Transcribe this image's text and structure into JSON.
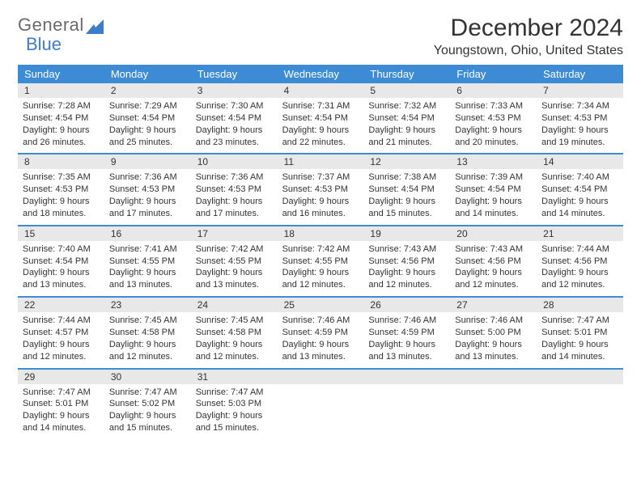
{
  "logo": {
    "general": "General",
    "blue": "Blue"
  },
  "title": "December 2024",
  "location": "Youngstown, Ohio, United States",
  "colors": {
    "header_bg": "#3d8bd4",
    "header_text": "#ffffff",
    "daynum_bg": "#e8e8e8",
    "row_border": "#3d8bd4",
    "logo_gray": "#6a6a6a",
    "logo_blue": "#3d7cc9",
    "text": "#333333",
    "background": "#ffffff"
  },
  "font": {
    "family": "Arial",
    "title_size_pt": 22,
    "location_size_pt": 12,
    "header_size_pt": 10,
    "body_size_pt": 8
  },
  "day_names": [
    "Sunday",
    "Monday",
    "Tuesday",
    "Wednesday",
    "Thursday",
    "Friday",
    "Saturday"
  ],
  "weeks": [
    {
      "nums": [
        "1",
        "2",
        "3",
        "4",
        "5",
        "6",
        "7"
      ],
      "cells": [
        {
          "sunrise": "Sunrise: 7:28 AM",
          "sunset": "Sunset: 4:54 PM",
          "d1": "Daylight: 9 hours",
          "d2": "and 26 minutes."
        },
        {
          "sunrise": "Sunrise: 7:29 AM",
          "sunset": "Sunset: 4:54 PM",
          "d1": "Daylight: 9 hours",
          "d2": "and 25 minutes."
        },
        {
          "sunrise": "Sunrise: 7:30 AM",
          "sunset": "Sunset: 4:54 PM",
          "d1": "Daylight: 9 hours",
          "d2": "and 23 minutes."
        },
        {
          "sunrise": "Sunrise: 7:31 AM",
          "sunset": "Sunset: 4:54 PM",
          "d1": "Daylight: 9 hours",
          "d2": "and 22 minutes."
        },
        {
          "sunrise": "Sunrise: 7:32 AM",
          "sunset": "Sunset: 4:54 PM",
          "d1": "Daylight: 9 hours",
          "d2": "and 21 minutes."
        },
        {
          "sunrise": "Sunrise: 7:33 AM",
          "sunset": "Sunset: 4:53 PM",
          "d1": "Daylight: 9 hours",
          "d2": "and 20 minutes."
        },
        {
          "sunrise": "Sunrise: 7:34 AM",
          "sunset": "Sunset: 4:53 PM",
          "d1": "Daylight: 9 hours",
          "d2": "and 19 minutes."
        }
      ]
    },
    {
      "nums": [
        "8",
        "9",
        "10",
        "11",
        "12",
        "13",
        "14"
      ],
      "cells": [
        {
          "sunrise": "Sunrise: 7:35 AM",
          "sunset": "Sunset: 4:53 PM",
          "d1": "Daylight: 9 hours",
          "d2": "and 18 minutes."
        },
        {
          "sunrise": "Sunrise: 7:36 AM",
          "sunset": "Sunset: 4:53 PM",
          "d1": "Daylight: 9 hours",
          "d2": "and 17 minutes."
        },
        {
          "sunrise": "Sunrise: 7:36 AM",
          "sunset": "Sunset: 4:53 PM",
          "d1": "Daylight: 9 hours",
          "d2": "and 17 minutes."
        },
        {
          "sunrise": "Sunrise: 7:37 AM",
          "sunset": "Sunset: 4:53 PM",
          "d1": "Daylight: 9 hours",
          "d2": "and 16 minutes."
        },
        {
          "sunrise": "Sunrise: 7:38 AM",
          "sunset": "Sunset: 4:54 PM",
          "d1": "Daylight: 9 hours",
          "d2": "and 15 minutes."
        },
        {
          "sunrise": "Sunrise: 7:39 AM",
          "sunset": "Sunset: 4:54 PM",
          "d1": "Daylight: 9 hours",
          "d2": "and 14 minutes."
        },
        {
          "sunrise": "Sunrise: 7:40 AM",
          "sunset": "Sunset: 4:54 PM",
          "d1": "Daylight: 9 hours",
          "d2": "and 14 minutes."
        }
      ]
    },
    {
      "nums": [
        "15",
        "16",
        "17",
        "18",
        "19",
        "20",
        "21"
      ],
      "cells": [
        {
          "sunrise": "Sunrise: 7:40 AM",
          "sunset": "Sunset: 4:54 PM",
          "d1": "Daylight: 9 hours",
          "d2": "and 13 minutes."
        },
        {
          "sunrise": "Sunrise: 7:41 AM",
          "sunset": "Sunset: 4:55 PM",
          "d1": "Daylight: 9 hours",
          "d2": "and 13 minutes."
        },
        {
          "sunrise": "Sunrise: 7:42 AM",
          "sunset": "Sunset: 4:55 PM",
          "d1": "Daylight: 9 hours",
          "d2": "and 13 minutes."
        },
        {
          "sunrise": "Sunrise: 7:42 AM",
          "sunset": "Sunset: 4:55 PM",
          "d1": "Daylight: 9 hours",
          "d2": "and 12 minutes."
        },
        {
          "sunrise": "Sunrise: 7:43 AM",
          "sunset": "Sunset: 4:56 PM",
          "d1": "Daylight: 9 hours",
          "d2": "and 12 minutes."
        },
        {
          "sunrise": "Sunrise: 7:43 AM",
          "sunset": "Sunset: 4:56 PM",
          "d1": "Daylight: 9 hours",
          "d2": "and 12 minutes."
        },
        {
          "sunrise": "Sunrise: 7:44 AM",
          "sunset": "Sunset: 4:56 PM",
          "d1": "Daylight: 9 hours",
          "d2": "and 12 minutes."
        }
      ]
    },
    {
      "nums": [
        "22",
        "23",
        "24",
        "25",
        "26",
        "27",
        "28"
      ],
      "cells": [
        {
          "sunrise": "Sunrise: 7:44 AM",
          "sunset": "Sunset: 4:57 PM",
          "d1": "Daylight: 9 hours",
          "d2": "and 12 minutes."
        },
        {
          "sunrise": "Sunrise: 7:45 AM",
          "sunset": "Sunset: 4:58 PM",
          "d1": "Daylight: 9 hours",
          "d2": "and 12 minutes."
        },
        {
          "sunrise": "Sunrise: 7:45 AM",
          "sunset": "Sunset: 4:58 PM",
          "d1": "Daylight: 9 hours",
          "d2": "and 12 minutes."
        },
        {
          "sunrise": "Sunrise: 7:46 AM",
          "sunset": "Sunset: 4:59 PM",
          "d1": "Daylight: 9 hours",
          "d2": "and 13 minutes."
        },
        {
          "sunrise": "Sunrise: 7:46 AM",
          "sunset": "Sunset: 4:59 PM",
          "d1": "Daylight: 9 hours",
          "d2": "and 13 minutes."
        },
        {
          "sunrise": "Sunrise: 7:46 AM",
          "sunset": "Sunset: 5:00 PM",
          "d1": "Daylight: 9 hours",
          "d2": "and 13 minutes."
        },
        {
          "sunrise": "Sunrise: 7:47 AM",
          "sunset": "Sunset: 5:01 PM",
          "d1": "Daylight: 9 hours",
          "d2": "and 14 minutes."
        }
      ]
    },
    {
      "nums": [
        "29",
        "30",
        "31",
        "",
        "",
        "",
        ""
      ],
      "cells": [
        {
          "sunrise": "Sunrise: 7:47 AM",
          "sunset": "Sunset: 5:01 PM",
          "d1": "Daylight: 9 hours",
          "d2": "and 14 minutes."
        },
        {
          "sunrise": "Sunrise: 7:47 AM",
          "sunset": "Sunset: 5:02 PM",
          "d1": "Daylight: 9 hours",
          "d2": "and 15 minutes."
        },
        {
          "sunrise": "Sunrise: 7:47 AM",
          "sunset": "Sunset: 5:03 PM",
          "d1": "Daylight: 9 hours",
          "d2": "and 15 minutes."
        },
        {
          "sunrise": "",
          "sunset": "",
          "d1": "",
          "d2": ""
        },
        {
          "sunrise": "",
          "sunset": "",
          "d1": "",
          "d2": ""
        },
        {
          "sunrise": "",
          "sunset": "",
          "d1": "",
          "d2": ""
        },
        {
          "sunrise": "",
          "sunset": "",
          "d1": "",
          "d2": ""
        }
      ]
    }
  ]
}
